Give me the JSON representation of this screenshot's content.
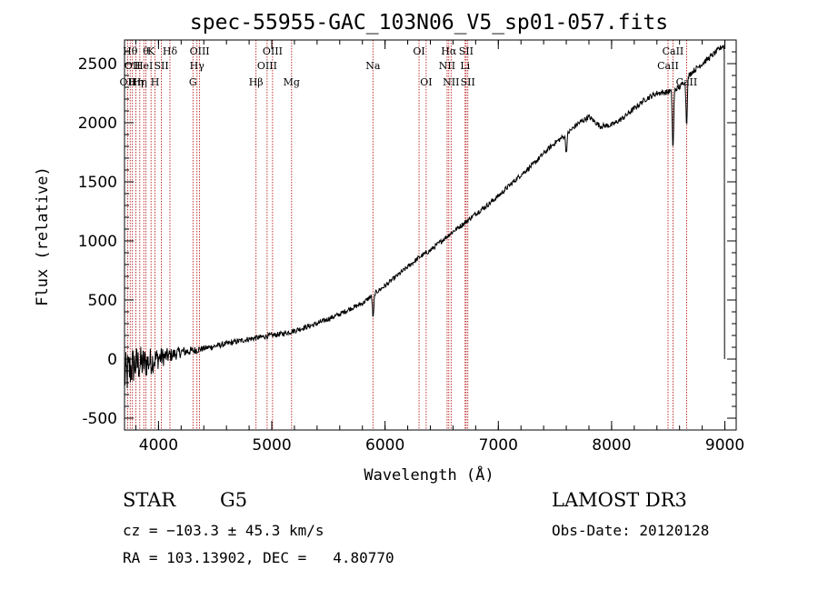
{
  "chart_data": {
    "type": "line",
    "title": "spec-55955-GAC_103N06_V5_sp01-057.fits",
    "xlabel": "Wavelength (Å)",
    "ylabel": "Flux (relative)",
    "xlim": [
      3700,
      9100
    ],
    "ylim": [
      -600,
      2700
    ],
    "x_ticks": [
      4000,
      5000,
      6000,
      7000,
      8000,
      9000
    ],
    "y_ticks": [
      -500,
      0,
      500,
      1000,
      1500,
      2000,
      2500
    ],
    "series": [
      {
        "name": "flux",
        "anchors_x": [
          3700,
          3780,
          3900,
          4000,
          4100,
          4200,
          4300,
          4400,
          4500,
          4600,
          4700,
          4800,
          4900,
          5000,
          5100,
          5200,
          5300,
          5400,
          5500,
          5600,
          5700,
          5800,
          5900,
          6000,
          6100,
          6200,
          6300,
          6400,
          6500,
          6600,
          6700,
          6800,
          6900,
          7000,
          7100,
          7200,
          7300,
          7400,
          7500,
          7600,
          7700,
          7800,
          7900,
          8000,
          8100,
          8200,
          8300,
          8400,
          8500,
          8600,
          8700,
          8800,
          8900,
          8980
        ],
        "anchors_y": [
          -150,
          -50,
          -30,
          10,
          30,
          60,
          70,
          90,
          110,
          130,
          150,
          170,
          185,
          200,
          215,
          240,
          270,
          300,
          340,
          380,
          430,
          470,
          550,
          620,
          700,
          780,
          860,
          920,
          1000,
          1080,
          1150,
          1230,
          1300,
          1380,
          1470,
          1560,
          1640,
          1740,
          1830,
          1900,
          1990,
          2050,
          1970,
          1980,
          2040,
          2120,
          2200,
          2250,
          2260,
          2300,
          2420,
          2500,
          2580,
          2650
        ],
        "noise": [
          [
            3700,
            200
          ],
          [
            3900,
            130
          ],
          [
            4100,
            60
          ],
          [
            4400,
            25
          ],
          [
            6000,
            20
          ],
          [
            9000,
            25
          ]
        ],
        "dips": [
          {
            "x": 5895,
            "depth": 200
          },
          {
            "x": 7600,
            "depth": 150
          },
          {
            "x": 8542,
            "depth": 500
          },
          {
            "x": 8662,
            "depth": 380
          }
        ]
      }
    ],
    "lines": [
      {
        "x": 3727,
        "label": "OII",
        "row": 2
      },
      {
        "x": 3750,
        "label": "Hθ",
        "row": 0
      },
      {
        "x": 3770,
        "label": "OII",
        "row": 1
      },
      {
        "x": 3800,
        "label": "Hη",
        "row": 2
      },
      {
        "x": 3835,
        "label": "Hη",
        "row": 2
      },
      {
        "x": 3870,
        "label": "HeI",
        "row": 1
      },
      {
        "x": 3889,
        "label": "θ",
        "row": 0
      },
      {
        "x": 3934,
        "label": "K",
        "row": 0
      },
      {
        "x": 3969,
        "label": "H",
        "row": 2
      },
      {
        "x": 4026,
        "label": "SII",
        "row": 1
      },
      {
        "x": 4101,
        "label": "Hδ",
        "row": 0
      },
      {
        "x": 4304,
        "label": "G",
        "row": 2
      },
      {
        "x": 4340,
        "label": "Hγ",
        "row": 1
      },
      {
        "x": 4363,
        "label": "OIII",
        "row": 0
      },
      {
        "x": 4861,
        "label": "Hβ",
        "row": 2
      },
      {
        "x": 4959,
        "label": "OIII",
        "row": 1
      },
      {
        "x": 5007,
        "label": "OIII",
        "row": 0
      },
      {
        "x": 5175,
        "label": "Mg",
        "row": 2
      },
      {
        "x": 5893,
        "label": "Na",
        "row": 1
      },
      {
        "x": 6300,
        "label": "OI",
        "row": 0
      },
      {
        "x": 6363,
        "label": "OI",
        "row": 2
      },
      {
        "x": 6548,
        "label": "NII",
        "row": 1
      },
      {
        "x": 6563,
        "label": "Hα",
        "row": 0
      },
      {
        "x": 6583,
        "label": "NII",
        "row": 2
      },
      {
        "x": 6707,
        "label": "Li",
        "row": 1
      },
      {
        "x": 6716,
        "label": "SII",
        "row": 0
      },
      {
        "x": 6731,
        "label": "SII",
        "row": 2
      },
      {
        "x": 8498,
        "label": "CaII",
        "row": 1
      },
      {
        "x": 8542,
        "label": "CaII",
        "row": 0
      },
      {
        "x": 8662,
        "label": "CaII",
        "row": 2
      }
    ]
  },
  "info": {
    "object_class": "STAR",
    "subclass": "G5",
    "survey": "LAMOST DR3",
    "cz": "cz = −103.3 ± 45.3 km/s",
    "obs_date": "Obs-Date: 20120128",
    "coords": "RA = 103.13902, DEC =   4.80770"
  },
  "colors": {
    "axis": "#000000",
    "spectrum": "#000000",
    "line_marker": "#b00000"
  }
}
